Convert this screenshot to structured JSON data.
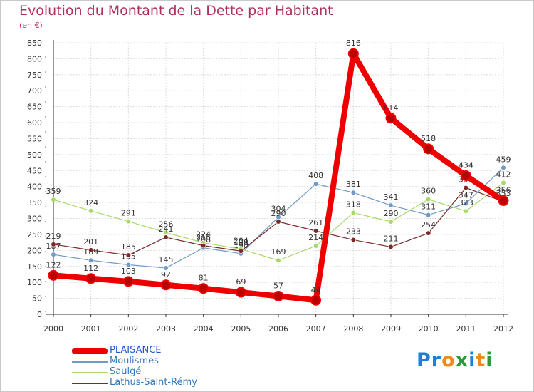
{
  "title": "Evolution du Montant de la Dette par Habitant",
  "unit_label": "(en €)",
  "logo": {
    "text": "Proxiti",
    "letters": [
      "P",
      "r",
      "o",
      "x",
      "i",
      "t",
      "i"
    ],
    "colors": [
      "#1e7fd6",
      "#1e7fd6",
      "#f08a1c",
      "#2a9a3a",
      "#1e7fd6",
      "#f08a1c",
      "#2a9a3a"
    ]
  },
  "chart_data": {
    "type": "line",
    "x": [
      "2000",
      "2001",
      "2002",
      "2003",
      "2004",
      "2005",
      "2006",
      "2007",
      "2008",
      "2009",
      "2010",
      "2011",
      "2012"
    ],
    "ylim": [
      0,
      850
    ],
    "yticks": [
      0,
      50,
      100,
      150,
      200,
      250,
      300,
      350,
      400,
      450,
      500,
      550,
      600,
      650,
      700,
      750,
      800,
      850
    ],
    "grid": true,
    "legend_position": "bottom-left",
    "series": [
      {
        "name": "Moulismes",
        "color": "#6f9ac6",
        "values": [
          187,
          169,
          155,
          145,
          208,
          190,
          304,
          408,
          381,
          341,
          311,
          347,
          459
        ],
        "labels": [
          "187",
          "169",
          "155",
          "145",
          "208",
          "190",
          "304",
          "408",
          "381",
          "341",
          "311",
          "347",
          "459"
        ]
      },
      {
        "name": "Saulgé",
        "color": "#a8d86a",
        "values": [
          359,
          324,
          291,
          256,
          224,
          204,
          169,
          214,
          318,
          290,
          360,
          323,
          412
        ],
        "labels": [
          "359",
          "324",
          "291",
          "256",
          "224",
          "204",
          "169",
          "214",
          "318",
          "290",
          "360",
          "323",
          "412"
        ]
      },
      {
        "name": "Lathus-Saint-Rémy",
        "color": "#7b2a2a",
        "values": [
          219,
          201,
          185,
          241,
          215,
          198,
          290,
          261,
          233,
          211,
          254,
          396,
          353
        ],
        "labels": [
          "219",
          "201",
          "185",
          "241",
          "215",
          "198",
          "290",
          "261",
          "233",
          "211",
          "254",
          "396",
          "353"
        ]
      },
      {
        "name": "PLAISANCE",
        "color": "#ee0000",
        "values": [
          122,
          112,
          103,
          92,
          81,
          69,
          57,
          44,
          816,
          614,
          518,
          434,
          356
        ],
        "labels": [
          "122",
          "112",
          "103",
          "92",
          "81",
          "69",
          "57",
          "44",
          "816",
          "614",
          "518",
          "434",
          "356"
        ]
      }
    ]
  },
  "legend": [
    {
      "name": "PLAISANCE",
      "color": "#ee0000",
      "text_color": "#2255cc"
    },
    {
      "name": "Moulismes",
      "color": "#6f9ac6",
      "text_color": "#3377bb"
    },
    {
      "name": "Saulgé",
      "color": "#a8d86a",
      "text_color": "#3377bb"
    },
    {
      "name": "Lathus-Saint-Rémy",
      "color": "#7b2a2a",
      "text_color": "#3377bb"
    }
  ]
}
